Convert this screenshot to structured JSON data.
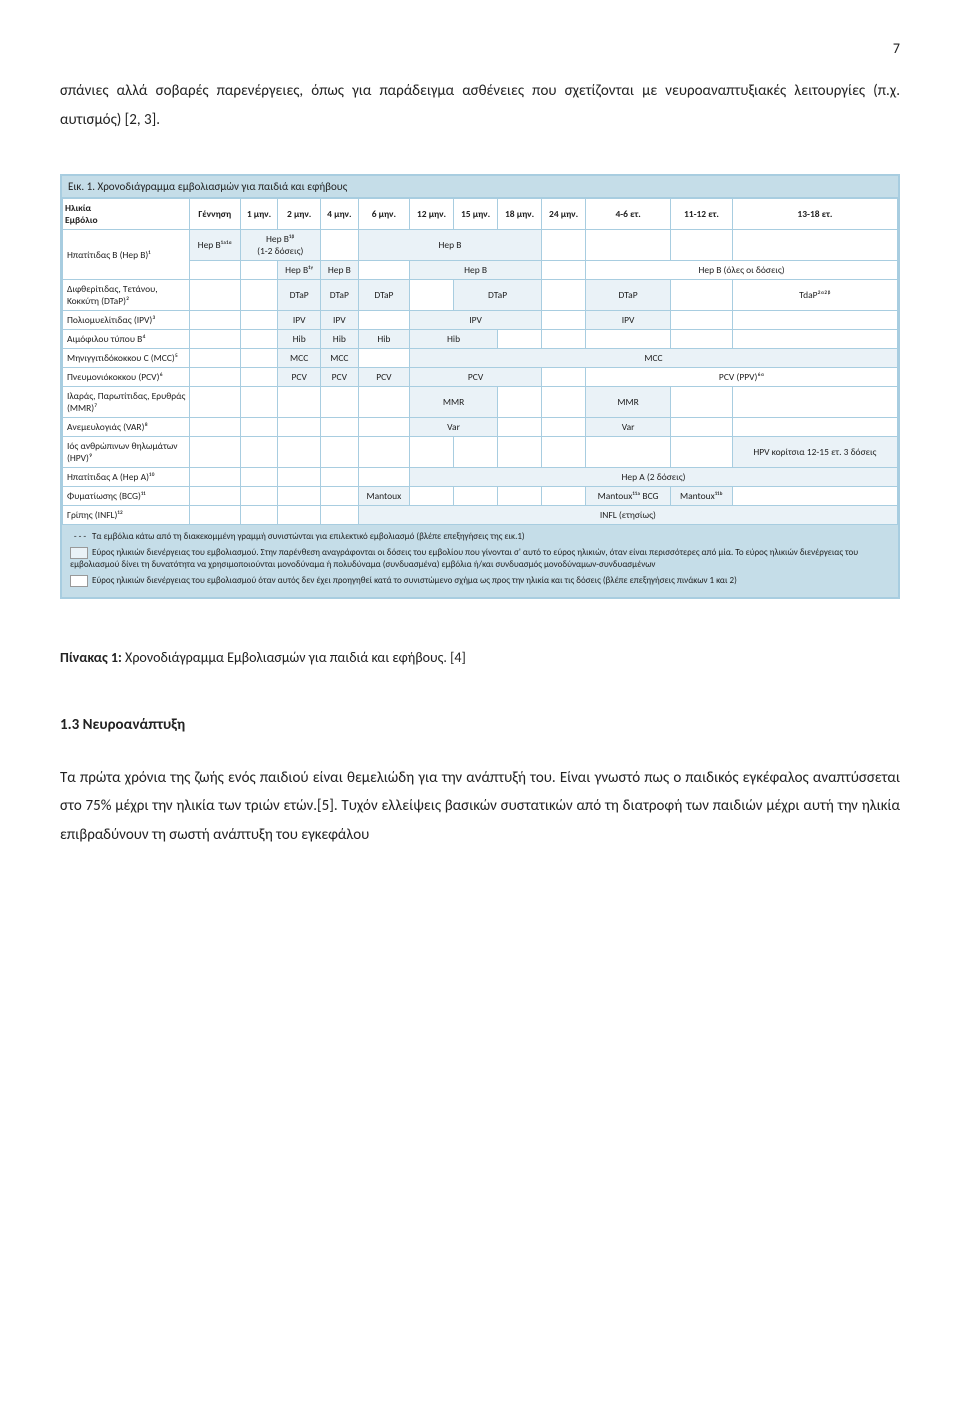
{
  "page_number": "7",
  "intro_paragraph": "σπάνιες αλλά σοβαρές παρενέργειες, όπως για παράδειγμα ασθένειες που σχετίζονται με νευροαναπτυξιακές λειτουργίες (π.χ. αυτισμός) [2, 3].",
  "figure": {
    "title": "Εικ. 1. Χρονοδιάγραμμα εμβολιασμών για παιδιά και εφήβους",
    "header_rowcol": "Ηλικία\nΕμβόλιο",
    "columns": [
      "Γέννηση",
      "1 μην.",
      "2 μην.",
      "4 μην.",
      "6 μην.",
      "12 μην.",
      "15 μην.",
      "18 μην.",
      "24 μην.",
      "4-6 ετ.",
      "11-12 ετ.",
      "13-18 ετ."
    ],
    "rows": [
      {
        "label": "Ηπατίτιδας Β (Hep B)¹",
        "sub": [
          {
            "cells": [
              {
                "t": "Hep B¹ᵃ¹ᵅ",
                "s": true
              },
              {
                "t": "Hep B¹ᵝ\n(1-2 δόσεις)",
                "s": true,
                "cs": 2
              },
              {
                "t": ""
              },
              {
                "t": "Hep B",
                "s": true,
                "cs": 4
              },
              {
                "t": ""
              },
              {
                "t": ""
              },
              {
                "t": ""
              },
              {
                "t": ""
              }
            ]
          },
          {
            "cells": [
              {
                "t": ""
              },
              {
                "t": ""
              },
              {
                "t": "Hep B¹ᵞ",
                "s": true
              },
              {
                "t": "Hep B",
                "s": true
              },
              {
                "t": ""
              },
              {
                "t": "Hep B",
                "s": true,
                "cs": 3
              },
              {
                "t": ""
              },
              {
                "t": "Hep B (όλες οι δόσεις)",
                "cs": 3
              }
            ]
          }
        ]
      },
      {
        "label": "Διφθερίτιδας, Τετάνου, Κοκκύτη (DTaP)²",
        "sub": [
          {
            "cells": [
              {
                "t": ""
              },
              {
                "t": ""
              },
              {
                "t": "DTaP",
                "s": true
              },
              {
                "t": "DTaP",
                "s": true
              },
              {
                "t": "DTaP",
                "s": true
              },
              {
                "t": ""
              },
              {
                "t": "DTaP",
                "s": true,
                "cs": 2
              },
              {
                "t": ""
              },
              {
                "t": "DTaP",
                "s": true
              },
              {
                "t": ""
              },
              {
                "t": "TdaP²ᵅ²ᵝ"
              }
            ]
          }
        ]
      },
      {
        "label": "Πολιομυελίτιδας (IPV)³",
        "sub": [
          {
            "cells": [
              {
                "t": ""
              },
              {
                "t": ""
              },
              {
                "t": "IPV",
                "s": true
              },
              {
                "t": "IPV",
                "s": true
              },
              {
                "t": ""
              },
              {
                "t": "IPV",
                "s": true,
                "cs": 3
              },
              {
                "t": ""
              },
              {
                "t": "IPV",
                "s": true
              },
              {
                "t": ""
              },
              {
                "t": ""
              }
            ]
          }
        ]
      },
      {
        "label": "Αιμόφιλου τύπου Β⁴",
        "sub": [
          {
            "cells": [
              {
                "t": ""
              },
              {
                "t": ""
              },
              {
                "t": "Hib",
                "s": true
              },
              {
                "t": "Hib",
                "s": true
              },
              {
                "t": "Hib",
                "s": true
              },
              {
                "t": "Hib",
                "s": true,
                "cs": 2
              },
              {
                "t": ""
              },
              {
                "t": ""
              },
              {
                "t": ""
              },
              {
                "t": ""
              },
              {
                "t": ""
              }
            ]
          }
        ]
      },
      {
        "label": "Μηνιγγιτιδόκοκκου C (MCC)⁵",
        "sub": [
          {
            "cells": [
              {
                "t": ""
              },
              {
                "t": ""
              },
              {
                "t": "MCC",
                "s": true
              },
              {
                "t": "MCC",
                "s": true
              },
              {
                "t": ""
              },
              {
                "t": "MCC",
                "s": true,
                "cs": 7
              }
            ]
          }
        ]
      },
      {
        "label": "Πνευμονιόκοκκου (PCV)⁶",
        "sub": [
          {
            "cells": [
              {
                "t": ""
              },
              {
                "t": ""
              },
              {
                "t": "PCV",
                "s": true
              },
              {
                "t": "PCV",
                "s": true
              },
              {
                "t": "PCV",
                "s": true
              },
              {
                "t": "PCV",
                "s": true,
                "cs": 3
              },
              {
                "t": ""
              },
              {
                "t": "PCV (PPV)⁶ᵅ",
                "cs": 3
              }
            ]
          }
        ]
      },
      {
        "label": "Ιλαράς, Παρωτίτιδας, Ερυθράς (ΜΜR)⁷",
        "sub": [
          {
            "cells": [
              {
                "t": ""
              },
              {
                "t": ""
              },
              {
                "t": ""
              },
              {
                "t": ""
              },
              {
                "t": ""
              },
              {
                "t": "MMR",
                "s": true,
                "cs": 2
              },
              {
                "t": ""
              },
              {
                "t": ""
              },
              {
                "t": "MMR",
                "s": true
              },
              {
                "t": ""
              },
              {
                "t": ""
              }
            ]
          }
        ]
      },
      {
        "label": "Ανεμευλογιάς (VAR)⁸",
        "sub": [
          {
            "cells": [
              {
                "t": ""
              },
              {
                "t": ""
              },
              {
                "t": ""
              },
              {
                "t": ""
              },
              {
                "t": ""
              },
              {
                "t": "Var",
                "s": true,
                "cs": 2
              },
              {
                "t": ""
              },
              {
                "t": ""
              },
              {
                "t": "Var",
                "s": true
              },
              {
                "t": ""
              },
              {
                "t": ""
              }
            ]
          }
        ]
      },
      {
        "label": "Ιός ανθρώπινων θηλωμάτων (HPV)⁹",
        "sub": [
          {
            "cells": [
              {
                "t": ""
              },
              {
                "t": ""
              },
              {
                "t": ""
              },
              {
                "t": ""
              },
              {
                "t": ""
              },
              {
                "t": ""
              },
              {
                "t": ""
              },
              {
                "t": ""
              },
              {
                "t": ""
              },
              {
                "t": ""
              },
              {
                "t": ""
              },
              {
                "t": "HPV κορίτσια 12-15 ετ. 3 δόσεις",
                "s": true
              }
            ]
          }
        ]
      },
      {
        "label": "Ηπατίτιδας Α (Hep A)¹⁰",
        "dashed": true,
        "sub": [
          {
            "cells": [
              {
                "t": ""
              },
              {
                "t": ""
              },
              {
                "t": ""
              },
              {
                "t": ""
              },
              {
                "t": ""
              },
              {
                "t": "Hep A (2 δόσεις)",
                "s": true,
                "cs": 7
              }
            ]
          }
        ]
      },
      {
        "label": "Φυματίωσης (BCG)¹¹",
        "sub": [
          {
            "cells": [
              {
                "t": ""
              },
              {
                "t": ""
              },
              {
                "t": ""
              },
              {
                "t": ""
              },
              {
                "t": "Mantoux",
                "s": true
              },
              {
                "t": ""
              },
              {
                "t": ""
              },
              {
                "t": ""
              },
              {
                "t": ""
              },
              {
                "t": "Mantoux¹¹ᵃ BCG",
                "s": true
              },
              {
                "t": "Mantoux¹¹ᵇ",
                "s": true
              },
              {
                "t": ""
              }
            ]
          }
        ]
      },
      {
        "label": "Γρίπης (INFL)¹²",
        "sub": [
          {
            "cells": [
              {
                "t": ""
              },
              {
                "t": ""
              },
              {
                "t": ""
              },
              {
                "t": ""
              },
              {
                "t": "INFL (ετησίως)",
                "s": true,
                "cs": 8
              }
            ]
          }
        ]
      }
    ],
    "footnotes": [
      {
        "marker": "dash",
        "text": "Τα εμβόλια κάτω από τη διακεκομμένη γραμμή συνιστώνται για επιλεκτικό εμβολιασμό (βλέπε επεξηγήσεις της εικ.1)"
      },
      {
        "marker": "shade",
        "text": "Εύρος ηλικιών διενέργειας του εμβολιασμού. Στην παρένθεση αναγράφονται οι δόσεις του εμβολίου που γίνονται σ' αυτό το εύρος ηλικιών, όταν είναι περισσότερες από μία. Το εύρος ηλικιών διενέργειας του εμβολιασμού δίνει τη δυνατότητα να χρησιμοποιούνται μονοδύναμα ή πολυδύναμα (συνδυασμένα) εμβόλια ή/και συνδυασμός μονοδύναμων-συνδυασμένων"
      },
      {
        "marker": "white",
        "text": "Εύρος ηλικιών διενέργειας του εμβολιασμού όταν αυτός δεν έχει προηγηθεί κατά το συνιστώμενο σχήμα ως προς την ηλικία και τις δόσεις (βλέπε επεξηγήσεις πινάκων 1 και 2)"
      }
    ]
  },
  "caption_label": "Πίνακας 1: ",
  "caption_text": "Χρονοδιάγραμμα Εμβολιασμών για παιδιά και εφήβους. [4]",
  "section_title": "1.3 Νευροανάπτυξη",
  "body_paragraph": "Τα πρώτα χρόνια της ζωής ενός παιδιού είναι θεμελιώδη για την ανάπτυξή του. Είναι γνωστό πως ο παιδικός εγκέφαλος αναπτύσσεται στο 75% μέχρι την ηλικία των τριών ετών.[5]. Τυχόν ελλείψεις βασικών συστατικών από τη διατροφή των παιδιών μέχρι αυτή την ηλικία επιβραδύνουν τη σωστή ανάπτυξη του εγκεφάλου"
}
